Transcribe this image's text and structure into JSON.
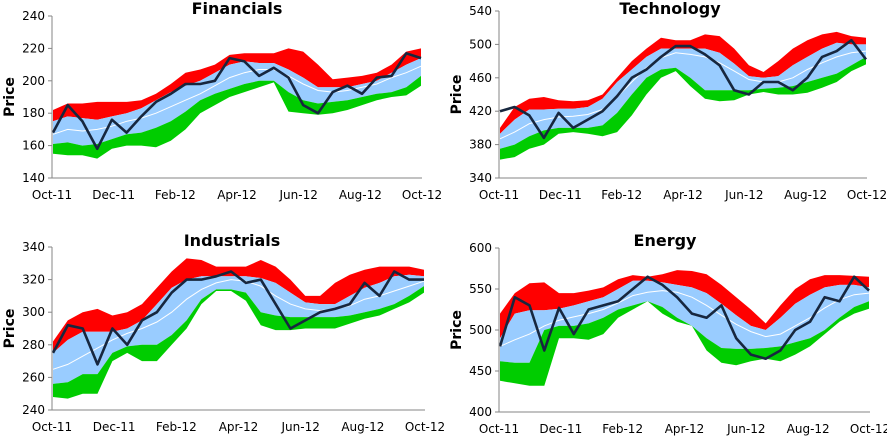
{
  "colors": {
    "upper_band": "#ff0000",
    "inner_band": "#99ccff",
    "lower_band": "#00cc00",
    "moving_average": "#ffffff",
    "price": "#17273f",
    "axis": "#868686"
  },
  "chart_data": [
    {
      "type": "area",
      "title": "Financials",
      "ylabel": "Price",
      "xlabel": "",
      "ylim": [
        140,
        240
      ],
      "yticks": [
        "140",
        "160",
        "180",
        "200",
        "220",
        "240"
      ],
      "xticks": [
        "Oct-11",
        "Dec-11",
        "Feb-12",
        "Apr-12",
        "Jun-12",
        "Aug-12",
        "Oct-12"
      ],
      "grid": false,
      "series": [
        {
          "name": "upper_outer",
          "values": [
            182,
            186,
            186,
            187,
            187,
            187,
            188,
            192,
            198,
            205,
            207,
            210,
            216,
            217,
            217,
            217,
            220,
            218,
            210,
            201,
            202,
            203,
            205,
            210,
            218,
            220
          ]
        },
        {
          "name": "upper_inner",
          "values": [
            175,
            178,
            177,
            176,
            178,
            180,
            183,
            188,
            193,
            197,
            200,
            205,
            210,
            212,
            211,
            211,
            207,
            202,
            196,
            196,
            196,
            198,
            200,
            205,
            210,
            214
          ]
        },
        {
          "name": "moving_average",
          "values": [
            167,
            170,
            169,
            170,
            172,
            175,
            177,
            180,
            184,
            188,
            192,
            197,
            202,
            205,
            207,
            207,
            203,
            198,
            194,
            193,
            194,
            196,
            198,
            202,
            205,
            209
          ]
        },
        {
          "name": "lower_inner",
          "values": [
            161,
            162,
            160,
            161,
            164,
            167,
            168,
            171,
            175,
            181,
            188,
            192,
            195,
            198,
            200,
            200,
            193,
            188,
            186,
            187,
            188,
            190,
            192,
            193,
            196,
            203
          ]
        },
        {
          "name": "lower_outer",
          "values": [
            155,
            154,
            154,
            152,
            158,
            160,
            160,
            159,
            163,
            170,
            180,
            185,
            190,
            193,
            196,
            199,
            181,
            180,
            179,
            180,
            182,
            185,
            188,
            190,
            191,
            197
          ]
        },
        {
          "name": "price",
          "values": [
            168,
            185,
            175,
            158,
            176,
            168,
            178,
            187,
            192,
            198,
            198,
            200,
            214,
            212,
            203,
            208,
            202,
            185,
            180,
            193,
            197,
            192,
            202,
            203,
            217,
            214
          ]
        }
      ]
    },
    {
      "type": "area",
      "title": "Technology",
      "ylabel": "Price",
      "xlabel": "",
      "ylim": [
        340,
        540
      ],
      "yticks": [
        "340",
        "380",
        "420",
        "460",
        "500",
        "540"
      ],
      "xticks": [
        "Oct-11",
        "Dec-11",
        "Feb-12",
        "Apr-12",
        "Jun-12",
        "Aug-12",
        "Oct-12"
      ],
      "grid": false,
      "series": [
        {
          "name": "upper_outer",
          "values": [
            400,
            425,
            435,
            437,
            433,
            432,
            433,
            440,
            460,
            480,
            495,
            508,
            505,
            505,
            512,
            510,
            495,
            475,
            467,
            480,
            495,
            505,
            512,
            515,
            510,
            508
          ]
        },
        {
          "name": "upper_inner",
          "values": [
            393,
            410,
            422,
            422,
            423,
            423,
            425,
            435,
            455,
            470,
            485,
            495,
            495,
            495,
            495,
            490,
            477,
            462,
            460,
            462,
            475,
            485,
            495,
            502,
            500,
            500
          ]
        },
        {
          "name": "moving_average",
          "values": [
            387,
            395,
            405,
            410,
            413,
            414,
            416,
            422,
            437,
            455,
            472,
            484,
            490,
            488,
            485,
            478,
            468,
            458,
            455,
            455,
            460,
            470,
            478,
            485,
            490,
            492
          ]
        },
        {
          "name": "lower_inner",
          "values": [
            375,
            380,
            390,
            397,
            400,
            400,
            400,
            403,
            418,
            440,
            460,
            470,
            472,
            460,
            445,
            445,
            445,
            445,
            447,
            448,
            450,
            455,
            460,
            465,
            475,
            485
          ]
        },
        {
          "name": "lower_outer",
          "values": [
            362,
            365,
            375,
            380,
            393,
            395,
            393,
            390,
            395,
            415,
            440,
            460,
            468,
            450,
            435,
            432,
            433,
            440,
            443,
            440,
            440,
            442,
            448,
            455,
            468,
            476
          ]
        },
        {
          "name": "price",
          "values": [
            420,
            425,
            415,
            388,
            418,
            400,
            410,
            420,
            438,
            460,
            470,
            485,
            498,
            498,
            488,
            475,
            445,
            440,
            455,
            455,
            445,
            460,
            485,
            492,
            505,
            482
          ]
        }
      ]
    },
    {
      "type": "area",
      "title": "Industrials",
      "ylabel": "Price",
      "xlabel": "",
      "ylim": [
        240,
        340
      ],
      "yticks": [
        "240",
        "260",
        "280",
        "300",
        "320",
        "340"
      ],
      "xticks": [
        "Oct-11",
        "Dec-11",
        "Feb-12",
        "Apr-12",
        "Jun-12",
        "Aug-12",
        "Oct-12"
      ],
      "grid": false,
      "series": [
        {
          "name": "upper_outer",
          "values": [
            282,
            295,
            300,
            302,
            298,
            300,
            305,
            315,
            325,
            333,
            332,
            328,
            328,
            328,
            332,
            328,
            320,
            310,
            310,
            318,
            323,
            326,
            328,
            328,
            328,
            326
          ]
        },
        {
          "name": "upper_inner",
          "values": [
            275,
            283,
            288,
            288,
            288,
            290,
            295,
            305,
            315,
            320,
            322,
            322,
            322,
            322,
            321,
            318,
            312,
            306,
            305,
            305,
            310,
            315,
            318,
            322,
            323,
            322
          ]
        },
        {
          "name": "moving_average",
          "values": [
            265,
            268,
            273,
            278,
            283,
            287,
            290,
            294,
            300,
            308,
            314,
            318,
            320,
            319,
            316,
            310,
            305,
            302,
            301,
            302,
            304,
            308,
            310,
            313,
            316,
            319
          ]
        },
        {
          "name": "lower_inner",
          "values": [
            256,
            257,
            262,
            262,
            275,
            279,
            280,
            280,
            286,
            295,
            308,
            314,
            314,
            312,
            300,
            298,
            297,
            297,
            297,
            297,
            298,
            300,
            302,
            305,
            310,
            316
          ]
        },
        {
          "name": "lower_outer",
          "values": [
            248,
            247,
            250,
            250,
            270,
            275,
            270,
            270,
            280,
            290,
            305,
            313,
            313,
            307,
            292,
            289,
            289,
            290,
            290,
            290,
            293,
            296,
            298,
            302,
            306,
            312
          ]
        },
        {
          "name": "price",
          "values": [
            275,
            292,
            290,
            268,
            290,
            280,
            295,
            300,
            312,
            320,
            320,
            322,
            325,
            318,
            320,
            305,
            290,
            295,
            300,
            302,
            305,
            318,
            310,
            325,
            320,
            320
          ]
        }
      ]
    },
    {
      "type": "area",
      "title": "Energy",
      "ylabel": "Price",
      "xlabel": "",
      "ylim": [
        400,
        600
      ],
      "yticks": [
        "400",
        "450",
        "500",
        "550",
        "600"
      ],
      "xticks": [
        "Oct-11",
        "Dec-11",
        "Feb-12",
        "Apr-12",
        "Jun-12",
        "Aug-12",
        "Oct-12"
      ],
      "grid": false,
      "series": [
        {
          "name": "upper_outer",
          "values": [
            520,
            545,
            557,
            558,
            545,
            545,
            548,
            552,
            562,
            567,
            565,
            568,
            573,
            572,
            568,
            555,
            540,
            525,
            508,
            530,
            550,
            562,
            567,
            567,
            566,
            565
          ]
        },
        {
          "name": "upper_inner",
          "values": [
            490,
            520,
            524,
            524,
            526,
            530,
            535,
            540,
            550,
            560,
            560,
            558,
            555,
            552,
            545,
            532,
            518,
            505,
            500,
            515,
            532,
            543,
            552,
            555,
            555,
            552
          ]
        },
        {
          "name": "moving_average",
          "values": [
            480,
            488,
            495,
            505,
            512,
            516,
            520,
            525,
            533,
            542,
            546,
            548,
            546,
            540,
            530,
            518,
            507,
            498,
            492,
            495,
            505,
            515,
            527,
            537,
            543,
            545
          ]
        },
        {
          "name": "lower_inner",
          "values": [
            462,
            460,
            460,
            500,
            505,
            505,
            508,
            515,
            525,
            530,
            535,
            528,
            515,
            505,
            490,
            478,
            477,
            477,
            478,
            480,
            485,
            490,
            500,
            515,
            528,
            535
          ]
        },
        {
          "name": "lower_outer",
          "values": [
            438,
            435,
            432,
            432,
            490,
            490,
            488,
            495,
            515,
            525,
            535,
            520,
            510,
            505,
            475,
            460,
            457,
            462,
            465,
            462,
            470,
            480,
            495,
            510,
            520,
            526
          ]
        },
        {
          "name": "price",
          "values": [
            480,
            540,
            530,
            475,
            527,
            495,
            525,
            530,
            535,
            550,
            565,
            555,
            540,
            520,
            515,
            530,
            490,
            470,
            465,
            475,
            500,
            510,
            540,
            535,
            565,
            548
          ]
        }
      ]
    }
  ]
}
